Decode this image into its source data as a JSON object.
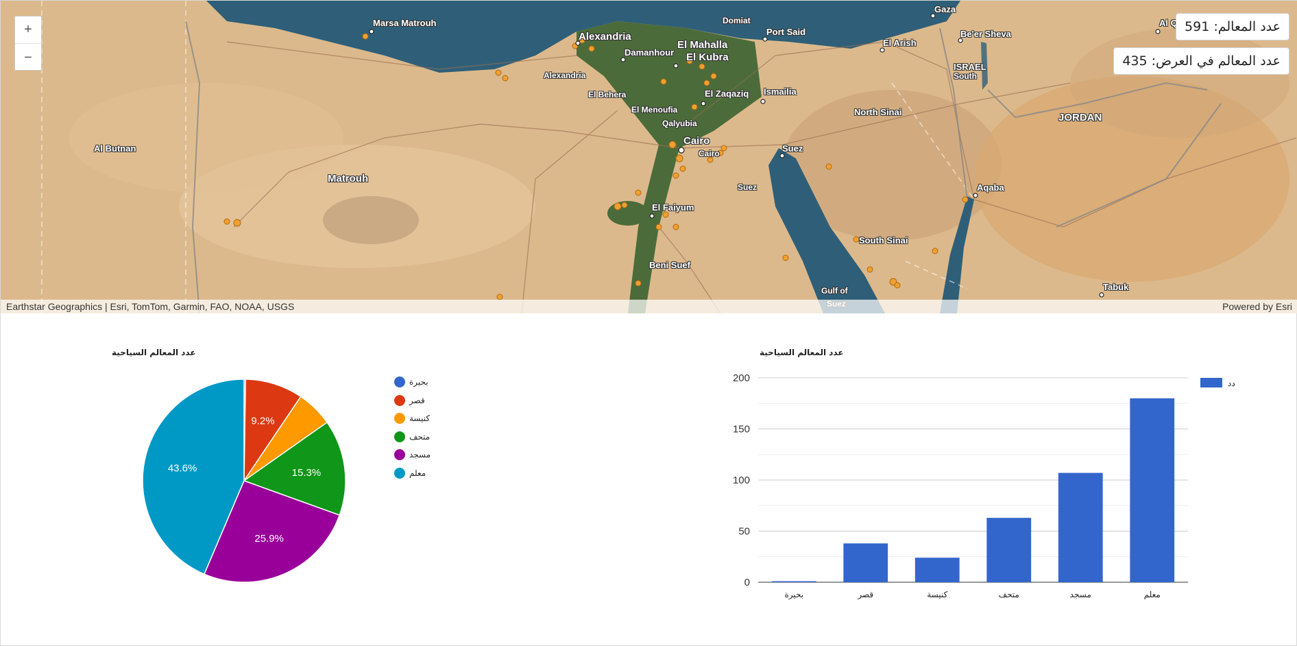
{
  "map": {
    "zoom_in": "+",
    "zoom_out": "−",
    "total_label": "عدد المعالم: 591",
    "in_view_label": "عدد المعالم في العرض: 435",
    "attribution": "Earthstar Geographics | Esri, TomTom, Garmin, FAO, NOAA, USGS",
    "powered_by": "Powered by Esri",
    "places": [
      {
        "name": "Marsa Matrouh",
        "cls": ""
      },
      {
        "name": "Alexandria",
        "cls": "big"
      },
      {
        "name": "Damanhour",
        "cls": ""
      },
      {
        "name": "El Mahalla",
        "cls": "big"
      },
      {
        "name": "El Kubra",
        "cls": "big"
      },
      {
        "name": "Domiat",
        "cls": "small"
      },
      {
        "name": "Port Said",
        "cls": ""
      },
      {
        "name": "Gaza",
        "cls": ""
      },
      {
        "name": "Be'er Sheva",
        "cls": ""
      },
      {
        "name": "El Arish",
        "cls": ""
      },
      {
        "name": "ISRAEL",
        "cls": ""
      },
      {
        "name": "South",
        "cls": "small"
      },
      {
        "name": "Al Qu",
        "cls": ""
      },
      {
        "name": "JORDAN",
        "cls": "big"
      },
      {
        "name": "Alexandria",
        "cls": "small"
      },
      {
        "name": "El Behera",
        "cls": "small"
      },
      {
        "name": "El Zaqaziq",
        "cls": ""
      },
      {
        "name": "Ismailia",
        "cls": ""
      },
      {
        "name": "El Menoufia",
        "cls": "small"
      },
      {
        "name": "Qalyubia",
        "cls": "small"
      },
      {
        "name": "North Sinai",
        "cls": ""
      },
      {
        "name": "Al Butnan",
        "cls": ""
      },
      {
        "name": "Cairo",
        "cls": "big"
      },
      {
        "name": "Cairo",
        "cls": "small"
      },
      {
        "name": "Suez",
        "cls": ""
      },
      {
        "name": "Matrouh",
        "cls": "big"
      },
      {
        "name": "Suez",
        "cls": "small"
      },
      {
        "name": "Aqaba",
        "cls": ""
      },
      {
        "name": "El Faiyum",
        "cls": ""
      },
      {
        "name": "South Sinai",
        "cls": ""
      },
      {
        "name": "Beni Suef",
        "cls": ""
      },
      {
        "name": "Gulf of",
        "cls": "small"
      },
      {
        "name": "Suez",
        "cls": "small"
      },
      {
        "name": "Tabuk",
        "cls": ""
      }
    ]
  },
  "colors": {
    "sea": "#2f5f78",
    "desert": "#dcb98c",
    "delta": "#4b6b3a",
    "marker": "#f0a030",
    "bar": "#3366cc"
  },
  "chart_data": [
    {
      "type": "pie",
      "title": "عدد المعالم السياحية",
      "categories": [
        "بحيرة",
        "قصر",
        "كنيسة",
        "متحف",
        "مسجد",
        "معلم"
      ],
      "values": [
        1,
        38,
        24,
        63,
        107,
        180
      ],
      "colors": [
        "#3366cc",
        "#dc3912",
        "#ff9900",
        "#109618",
        "#990099",
        "#0099c6"
      ],
      "data_labels": [
        "",
        "9.2%",
        "",
        "15.3%",
        "25.9%",
        "43.6%"
      ],
      "legend": "right"
    },
    {
      "type": "bar",
      "title": "عدد المعالم السياحية",
      "categories": [
        "بحيرة",
        "قصر",
        "كنيسة",
        "متحف",
        "مسجد",
        "معلم"
      ],
      "series": [
        {
          "name": "العدد",
          "values": [
            1,
            38,
            24,
            63,
            107,
            180
          ]
        }
      ],
      "ylim": [
        0,
        200
      ],
      "yticks": [
        "0",
        "50",
        "100",
        "150",
        "200"
      ],
      "grid": true,
      "legend": "right"
    }
  ]
}
